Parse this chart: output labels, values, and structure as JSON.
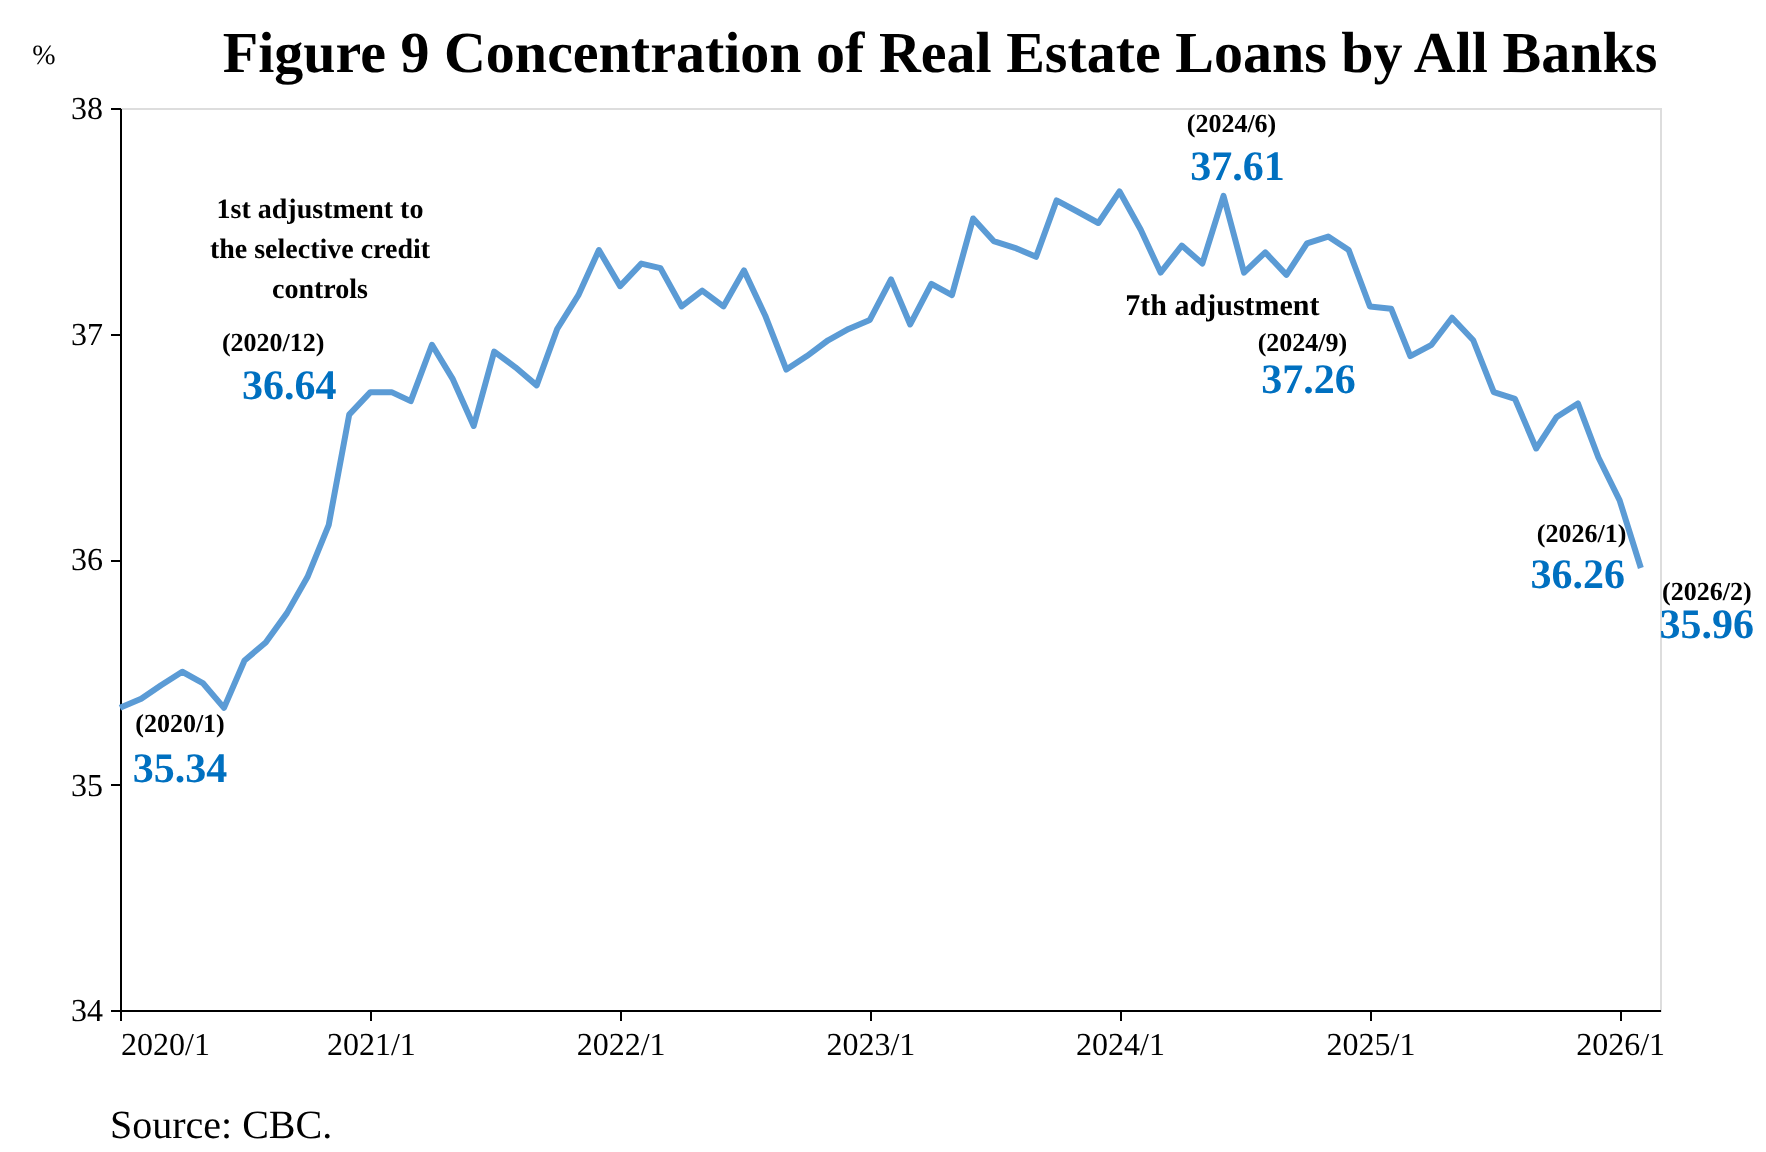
{
  "chart_data": {
    "type": "line",
    "title": "Figure 9    Concentration of Real Estate Loans by All Banks",
    "ylabel": "%",
    "x": [
      "2020-01",
      "2020-02",
      "2020-03",
      "2020-04",
      "2020-05",
      "2020-06",
      "2020-07",
      "2020-08",
      "2020-09",
      "2020-10",
      "2020-11",
      "2020-12",
      "2021-01",
      "2021-02",
      "2021-03",
      "2021-04",
      "2021-05",
      "2021-06",
      "2021-07",
      "2021-08",
      "2021-09",
      "2021-10",
      "2021-11",
      "2021-12",
      "2022-01",
      "2022-02",
      "2022-03",
      "2022-04",
      "2022-05",
      "2022-06",
      "2022-07",
      "2022-08",
      "2022-09",
      "2022-10",
      "2022-11",
      "2022-12",
      "2023-01",
      "2023-02",
      "2023-03",
      "2023-04",
      "2023-05",
      "2023-06",
      "2023-07",
      "2023-08",
      "2023-09",
      "2023-10",
      "2023-11",
      "2023-12",
      "2024-01",
      "2024-02",
      "2024-03",
      "2024-04",
      "2024-05",
      "2024-06",
      "2024-07",
      "2024-08",
      "2024-09",
      "2024-10",
      "2024-11",
      "2024-12",
      "2025-01",
      "2025-02",
      "2025-03",
      "2025-04",
      "2025-05",
      "2025-06",
      "2025-07",
      "2025-08",
      "2025-09",
      "2025-10",
      "2025-11",
      "2025-12",
      "2026-01",
      "2026-02"
    ],
    "series": [
      {
        "color": "#5b9bd5",
        "values": [
          35.34,
          35.38,
          35.44,
          35.5,
          35.45,
          35.34,
          35.55,
          35.63,
          35.76,
          35.92,
          36.15,
          36.64,
          36.74,
          36.74,
          36.7,
          36.95,
          36.8,
          36.59,
          36.92,
          36.85,
          36.77,
          37.02,
          37.17,
          37.37,
          37.21,
          37.31,
          37.29,
          37.12,
          37.19,
          37.12,
          37.28,
          37.08,
          36.84,
          36.9,
          36.97,
          37.02,
          37.06,
          37.24,
          37.04,
          37.22,
          37.17,
          37.51,
          37.41,
          37.38,
          37.34,
          37.59,
          37.54,
          37.49,
          37.63,
          37.46,
          37.27,
          37.39,
          37.31,
          37.61,
          37.27,
          37.36,
          37.26,
          37.4,
          37.43,
          37.37,
          37.12,
          37.11,
          36.9,
          36.95,
          37.07,
          36.97,
          36.74,
          36.71,
          36.49,
          36.63,
          36.69,
          36.45,
          36.26,
          35.96
        ]
      }
    ],
    "xlim": [
      "2020-01",
      "2026-03"
    ],
    "xticks": [
      {
        "value": "2020-01",
        "label": "2020/1"
      },
      {
        "value": "2021-01",
        "label": "2021/1"
      },
      {
        "value": "2022-01",
        "label": "2022/1"
      },
      {
        "value": "2023-01",
        "label": "2023/1"
      },
      {
        "value": "2024-01",
        "label": "2024/1"
      },
      {
        "value": "2025-01",
        "label": "2025/1"
      },
      {
        "value": "2026-01",
        "label": "2026/1"
      }
    ],
    "ylim": [
      34,
      38
    ],
    "yticks": [
      34,
      35,
      36,
      37,
      38
    ],
    "grid": false,
    "marker": "none",
    "line_style": "solid",
    "annotations": [
      "1st adjustment to\nthe selective credit\ncontrols",
      {
        "text": "(2020/12)",
        "x": "2020-12",
        "y": 36.64
      },
      {
        "text": "36.64",
        "x": "2020-12",
        "y": 36.64
      },
      {
        "text": "(2020/1)",
        "x": "2020-01",
        "y": 35.34
      },
      {
        "text": "35.34",
        "x": "2020-01",
        "y": 35.34
      },
      {
        "text": "(2024/6)",
        "x": "2024-06",
        "y": 37.61
      },
      {
        "text": "37.61",
        "x": "2024-06",
        "y": 37.61
      },
      {
        "text": "7th adjustment",
        "x": "2024-09",
        "y": 37.26
      },
      {
        "text": "(2024/9)",
        "x": "2024-09",
        "y": 37.26
      },
      {
        "text": "37.26",
        "x": "2024-09",
        "y": 37.26
      },
      {
        "text": "(2026/1)",
        "x": "2026-01",
        "y": 36.26
      },
      {
        "text": "36.26",
        "x": "2026-01",
        "y": 36.26
      },
      {
        "text": "(2026/2)",
        "x": "2026-02",
        "y": 35.96
      },
      {
        "text": "35.96",
        "x": "2026-02",
        "y": 35.96
      },
      "Source: CBC."
    ]
  }
}
